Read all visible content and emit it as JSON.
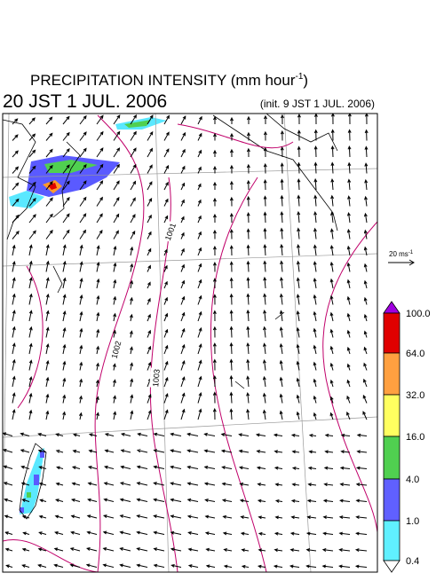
{
  "header": {
    "title": "PRECIPITATION INTENSITY (mm hour",
    "title_sup": "-1",
    "title_close": ")",
    "valid_time": "20 JST 1 JUL. 2006",
    "init_time": "(init. 9 JST 1 JUL. 2006)"
  },
  "wind_scale": {
    "label": "20 ms",
    "sup": "-1"
  },
  "isobar_labels": [
    "1001",
    "1002",
    "1003"
  ],
  "colorbar": {
    "labels": [
      "100.0",
      "64.0",
      "32.0",
      "16.0",
      "4.0",
      "1.0",
      "0.4"
    ]
  }
}
